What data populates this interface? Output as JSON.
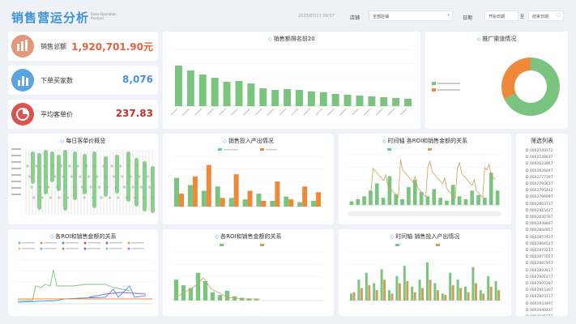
{
  "header": {
    "title": "销售营运分析",
    "subtitle": "Sales Operation Analysis",
    "datetime": "2023/07/17 09:57",
    "filters": [
      {
        "label": "店铺",
        "value": "全部店铺"
      },
      {
        "label": "日期",
        "value": "开始日期"
      },
      {
        "sep": "至",
        "value": "结束日期"
      }
    ]
  },
  "kpis": [
    {
      "label": "销售总额",
      "value": "1,920,701.90元",
      "color": "#e07a5f"
    },
    {
      "label": "下单买家数",
      "value": "8,076",
      "color": "#4a90e2"
    },
    {
      "label": "平均客单价",
      "value": "237.83",
      "color": "#d9534f"
    }
  ],
  "panels": {
    "top20": "销售额排名前20",
    "channel": "推广渠道情况",
    "daily": "每日客单价概览",
    "investment": "销售投入产出情况",
    "timeline_roi": "时间轴 各ROI和销售金额的关系",
    "list": "筛选列表",
    "roi_lines": "各ROI和销售金额的关系",
    "roi_bars": "各ROI和销售金额的关系",
    "timeline_invest": "时间轴 销售投入产出情况"
  },
  "chart_data": [
    {
      "type": "bar",
      "title": "销售额排名前20",
      "values": [
        50,
        44,
        39,
        35,
        30,
        31,
        28,
        22,
        20,
        21,
        20,
        18,
        17,
        15,
        14,
        13,
        12,
        11,
        10,
        9
      ],
      "ylim": [
        0,
        70
      ]
    },
    {
      "type": "pie",
      "title": "推广渠道情况",
      "values": [
        68,
        32
      ],
      "colors": [
        "#7bc47f",
        "#f0883a"
      ]
    },
    {
      "type": "bar",
      "title": "销售投入产出情况",
      "series": [
        {
          "values": [
            40,
            30,
            22,
            28,
            12,
            10,
            18,
            8,
            14,
            6,
            8
          ],
          "color": "#7bc47f"
        },
        {
          "values": [
            18,
            42,
            58,
            12,
            45,
            22,
            8,
            35,
            10,
            28,
            20
          ],
          "color": "#f0883a"
        }
      ],
      "ylim": [
        0,
        70
      ]
    },
    {
      "type": "bar",
      "title": "时间轴 各ROI和销售金额的关系",
      "values": [
        5,
        8,
        12,
        20,
        30,
        10,
        40,
        15,
        8,
        25,
        35,
        18,
        12,
        22,
        10,
        6,
        28,
        12,
        8,
        20,
        14,
        10,
        45,
        20
      ],
      "ylim": [
        0,
        70
      ]
    },
    {
      "type": "bar",
      "title": "各ROI和销售金额的关系",
      "values": [
        30,
        22,
        18,
        40,
        28,
        12,
        8,
        14,
        6,
        4,
        3,
        2
      ],
      "ylim": [
        0,
        70
      ]
    },
    {
      "type": "bar",
      "title": "时间轴 销售投入产出情况",
      "series": [
        {
          "values": [
            10,
            30,
            40,
            25,
            45,
            15,
            35,
            50,
            20,
            30,
            55,
            25,
            10,
            40,
            30,
            20,
            48,
            15,
            35,
            28
          ],
          "color": "#7bc47f"
        },
        {
          "values": [
            12,
            18,
            22,
            15,
            30,
            10,
            25,
            28,
            12,
            18,
            30,
            15,
            8,
            22,
            18,
            12,
            25,
            10,
            20,
            15
          ],
          "color": "#c9a15a"
        }
      ],
      "ylim": [
        0,
        70
      ]
    }
  ],
  "list": {
    "items": [
      "D 0002540172",
      "D 0002549637",
      "D 0002623867",
      "D 0002626497",
      "D 0002777397",
      "D 0002793637",
      "D 0002795442",
      "D 0002799997",
      "D 0002803717",
      "D 0002815437",
      "D 0002830767",
      "D 0002838807",
      "D 0002844957",
      "D 0002857437",
      "D 0002864527",
      "D 0002870217",
      "D 0002877057",
      "D 0002887957",
      "D 0002893917",
      "D 0002901177",
      "D 0002907287",
      "D 0002915307",
      "D 0002923117",
      "D 0002933497",
      "D 0002940227",
      "D 0002946377"
    ]
  }
}
